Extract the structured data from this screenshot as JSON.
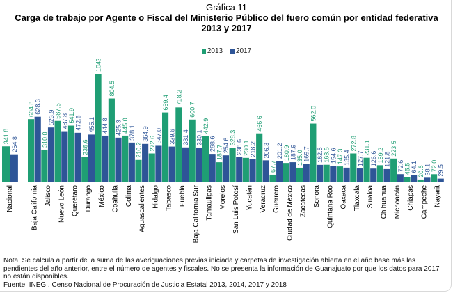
{
  "header": {
    "subtitle": "Gráfica 11",
    "title_line1": "Carga de trabajo por Agente o Fiscal del Ministerio Público del fuero común por entidad federativa",
    "title_line2": "2013 y 2017"
  },
  "colors": {
    "s2013": "#1f9e74",
    "s2017": "#2e5597"
  },
  "footer": {
    "note": "Nota: Se calcula a partir de la suma de las averiguaciones previas iniciada y carpetas de investigación abierta en el año base más las pendientes del año anterior, entre el número de agentes y fiscales. No se presenta la información de Guanajuato por que los datos para 2017 no están disponibles.",
    "source": "Fuente: INEGI. Censo Nacional de Procuración de Justicia Estatal 2013,  2014, 2017 y 2018"
  },
  "chart_data": {
    "type": "bar",
    "title": "Carga de trabajo por Agente o Fiscal del Ministerio Público del fuero común por entidad federativa 2013 y 2017",
    "xlabel": "",
    "ylabel": "",
    "ylim": [
      0,
      1100
    ],
    "grid": false,
    "legend": "top-center",
    "categories": [
      "Nacional",
      "Baja California",
      "Jalisco",
      "Nuevo León",
      "Querétaro",
      "Durango",
      "México",
      "Coahuila",
      "Colima",
      "Aguascalientes",
      "Hidalgo",
      "Tabasco",
      "Puebla",
      "Baja California Sur",
      "Tamaulipas",
      "Morelos",
      "San Luis Potosí",
      "Yucatán",
      "Veracruz",
      "Guerrero",
      "Ciudad de México",
      "Zacatecas",
      "Sonora",
      "Quintana Roo",
      "Oaxaca",
      "Tlaxcala",
      "Sinaloa",
      "Chihuahua",
      "Michoacán",
      "Chiapas",
      "Campeche",
      "Nayarit"
    ],
    "series": [
      {
        "name": "2013",
        "values": [
          341.8,
          604.8,
          310.0,
          587.5,
          541.9,
          236.6,
          1043.6,
          804.5,
          445.0,
          210.2,
          272.6,
          669.4,
          718.2,
          600.7,
          442.9,
          187.7,
          328.3,
          230.1,
          466.6,
          67.7,
          180.9,
          135.0,
          562.0,
          163.5,
          147.3,
          272.8,
          231.1,
          159.2,
          223.5,
          45.5,
          20.6,
          72.0
        ]
      },
      {
        "name": "2017",
        "values": [
          264.8,
          628.3,
          523.9,
          487.8,
          472.5,
          455.1,
          444.8,
          425.3,
          378.1,
          364.9,
          347.0,
          339.6,
          331.4,
          330.1,
          268.6,
          254.6,
          238.6,
          218.2,
          206.3,
          201.2,
          187.9,
          169.7,
          162.5,
          154.6,
          135.4,
          127.7,
          126.6,
          121.8,
          72.6,
          64.1,
          38.1,
          29.5
        ]
      }
    ]
  }
}
